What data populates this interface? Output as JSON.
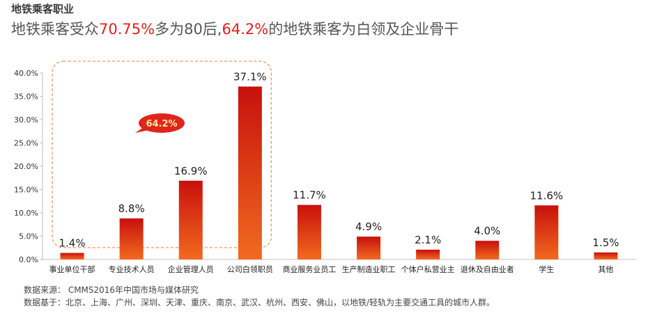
{
  "header": {
    "section_title": "地铁乘客职业",
    "headline_pre": "地铁乘客受众",
    "headline_pct1": "70.75%",
    "headline_mid": "多为80后,",
    "headline_pct2": "64.2%",
    "headline_post": "的地铁乘客为白领及企业骨干"
  },
  "chart_data": {
    "type": "bar",
    "categories": [
      "事业单位干部",
      "专业技术人员",
      "企业管理人员",
      "公司白领职员",
      "商业服务业员工",
      "生产制造业职工",
      "个体户私营业主",
      "退休及自由业者",
      "学生",
      "其他"
    ],
    "values": [
      1.4,
      8.8,
      16.9,
      37.1,
      11.7,
      4.9,
      2.1,
      4.0,
      11.6,
      1.5
    ],
    "data_labels": [
      "1.4%",
      "8.8%",
      "16.9%",
      "37.1%",
      "11.7%",
      "4.9%",
      "2.1%",
      "4.0%",
      "11.6%",
      "1.5%"
    ],
    "y_ticks": [
      "0.0%",
      "5.0%",
      "10.0%",
      "15.0%",
      "20.0%",
      "25.0%",
      "30.0%",
      "35.0%",
      "40.0%"
    ],
    "ylim": [
      0,
      40
    ],
    "title": "",
    "xlabel": "",
    "ylabel": "",
    "grid": false,
    "annotation": {
      "label": "64.2%",
      "covers_categories": [
        "事业单位干部",
        "专业技术人员",
        "企业管理人员",
        "公司白领职员"
      ]
    },
    "colors": {
      "bar_top": "#c8100c",
      "bar_bottom": "#f26a1f",
      "highlight_box": "#f0945a",
      "badge_fill": "#e0251c",
      "badge_text": "#ffe8a0"
    }
  },
  "footer": {
    "source": "数据来源： CMMS2016年中国市场与媒体研究",
    "basis": "数据基于：北京、上海、广州、深圳、天津、重庆、南京、武汉、杭州、西安、佛山，以地铁/轻轨为主要交通工具的城市人群。"
  }
}
